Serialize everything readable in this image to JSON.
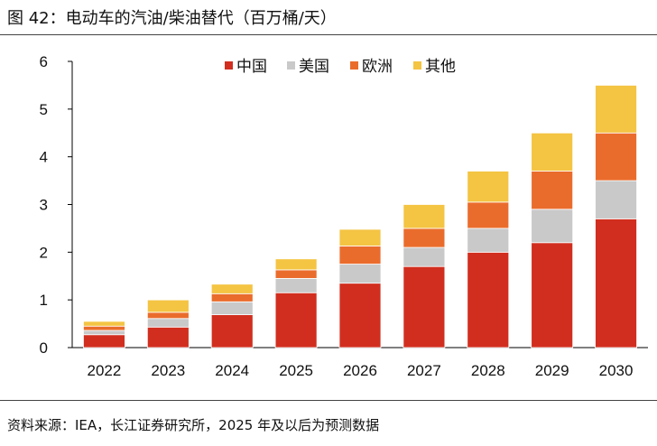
{
  "title": "图 42：电动车的汽油/柴油替代（百万桶/天）",
  "source": "资料来源：IEA，长江证券研究所，2025 年及以后为预测数据",
  "chart_data": {
    "type": "bar",
    "stacked": true,
    "title": "",
    "xlabel": "",
    "ylabel": "",
    "ylim": [
      0,
      6
    ],
    "yticks": [
      0,
      1,
      2,
      3,
      4,
      5,
      6
    ],
    "legend_position": "top",
    "grid": false,
    "categories": [
      "2022",
      "2023",
      "2024",
      "2025",
      "2026",
      "2027",
      "2028",
      "2029",
      "2030"
    ],
    "series": [
      {
        "name": "中国",
        "color": "#d12e1f",
        "values": [
          0.27,
          0.43,
          0.69,
          1.15,
          1.35,
          1.7,
          2.0,
          2.2,
          2.7
        ]
      },
      {
        "name": "美国",
        "color": "#c9c9c9",
        "values": [
          0.09,
          0.18,
          0.27,
          0.3,
          0.4,
          0.4,
          0.5,
          0.7,
          0.8
        ]
      },
      {
        "name": "欧洲",
        "color": "#ea6c2c",
        "values": [
          0.09,
          0.13,
          0.17,
          0.18,
          0.38,
          0.4,
          0.55,
          0.8,
          1.0
        ]
      },
      {
        "name": "其他",
        "color": "#f4c443",
        "values": [
          0.1,
          0.26,
          0.2,
          0.23,
          0.35,
          0.5,
          0.65,
          0.8,
          1.0
        ]
      }
    ]
  }
}
